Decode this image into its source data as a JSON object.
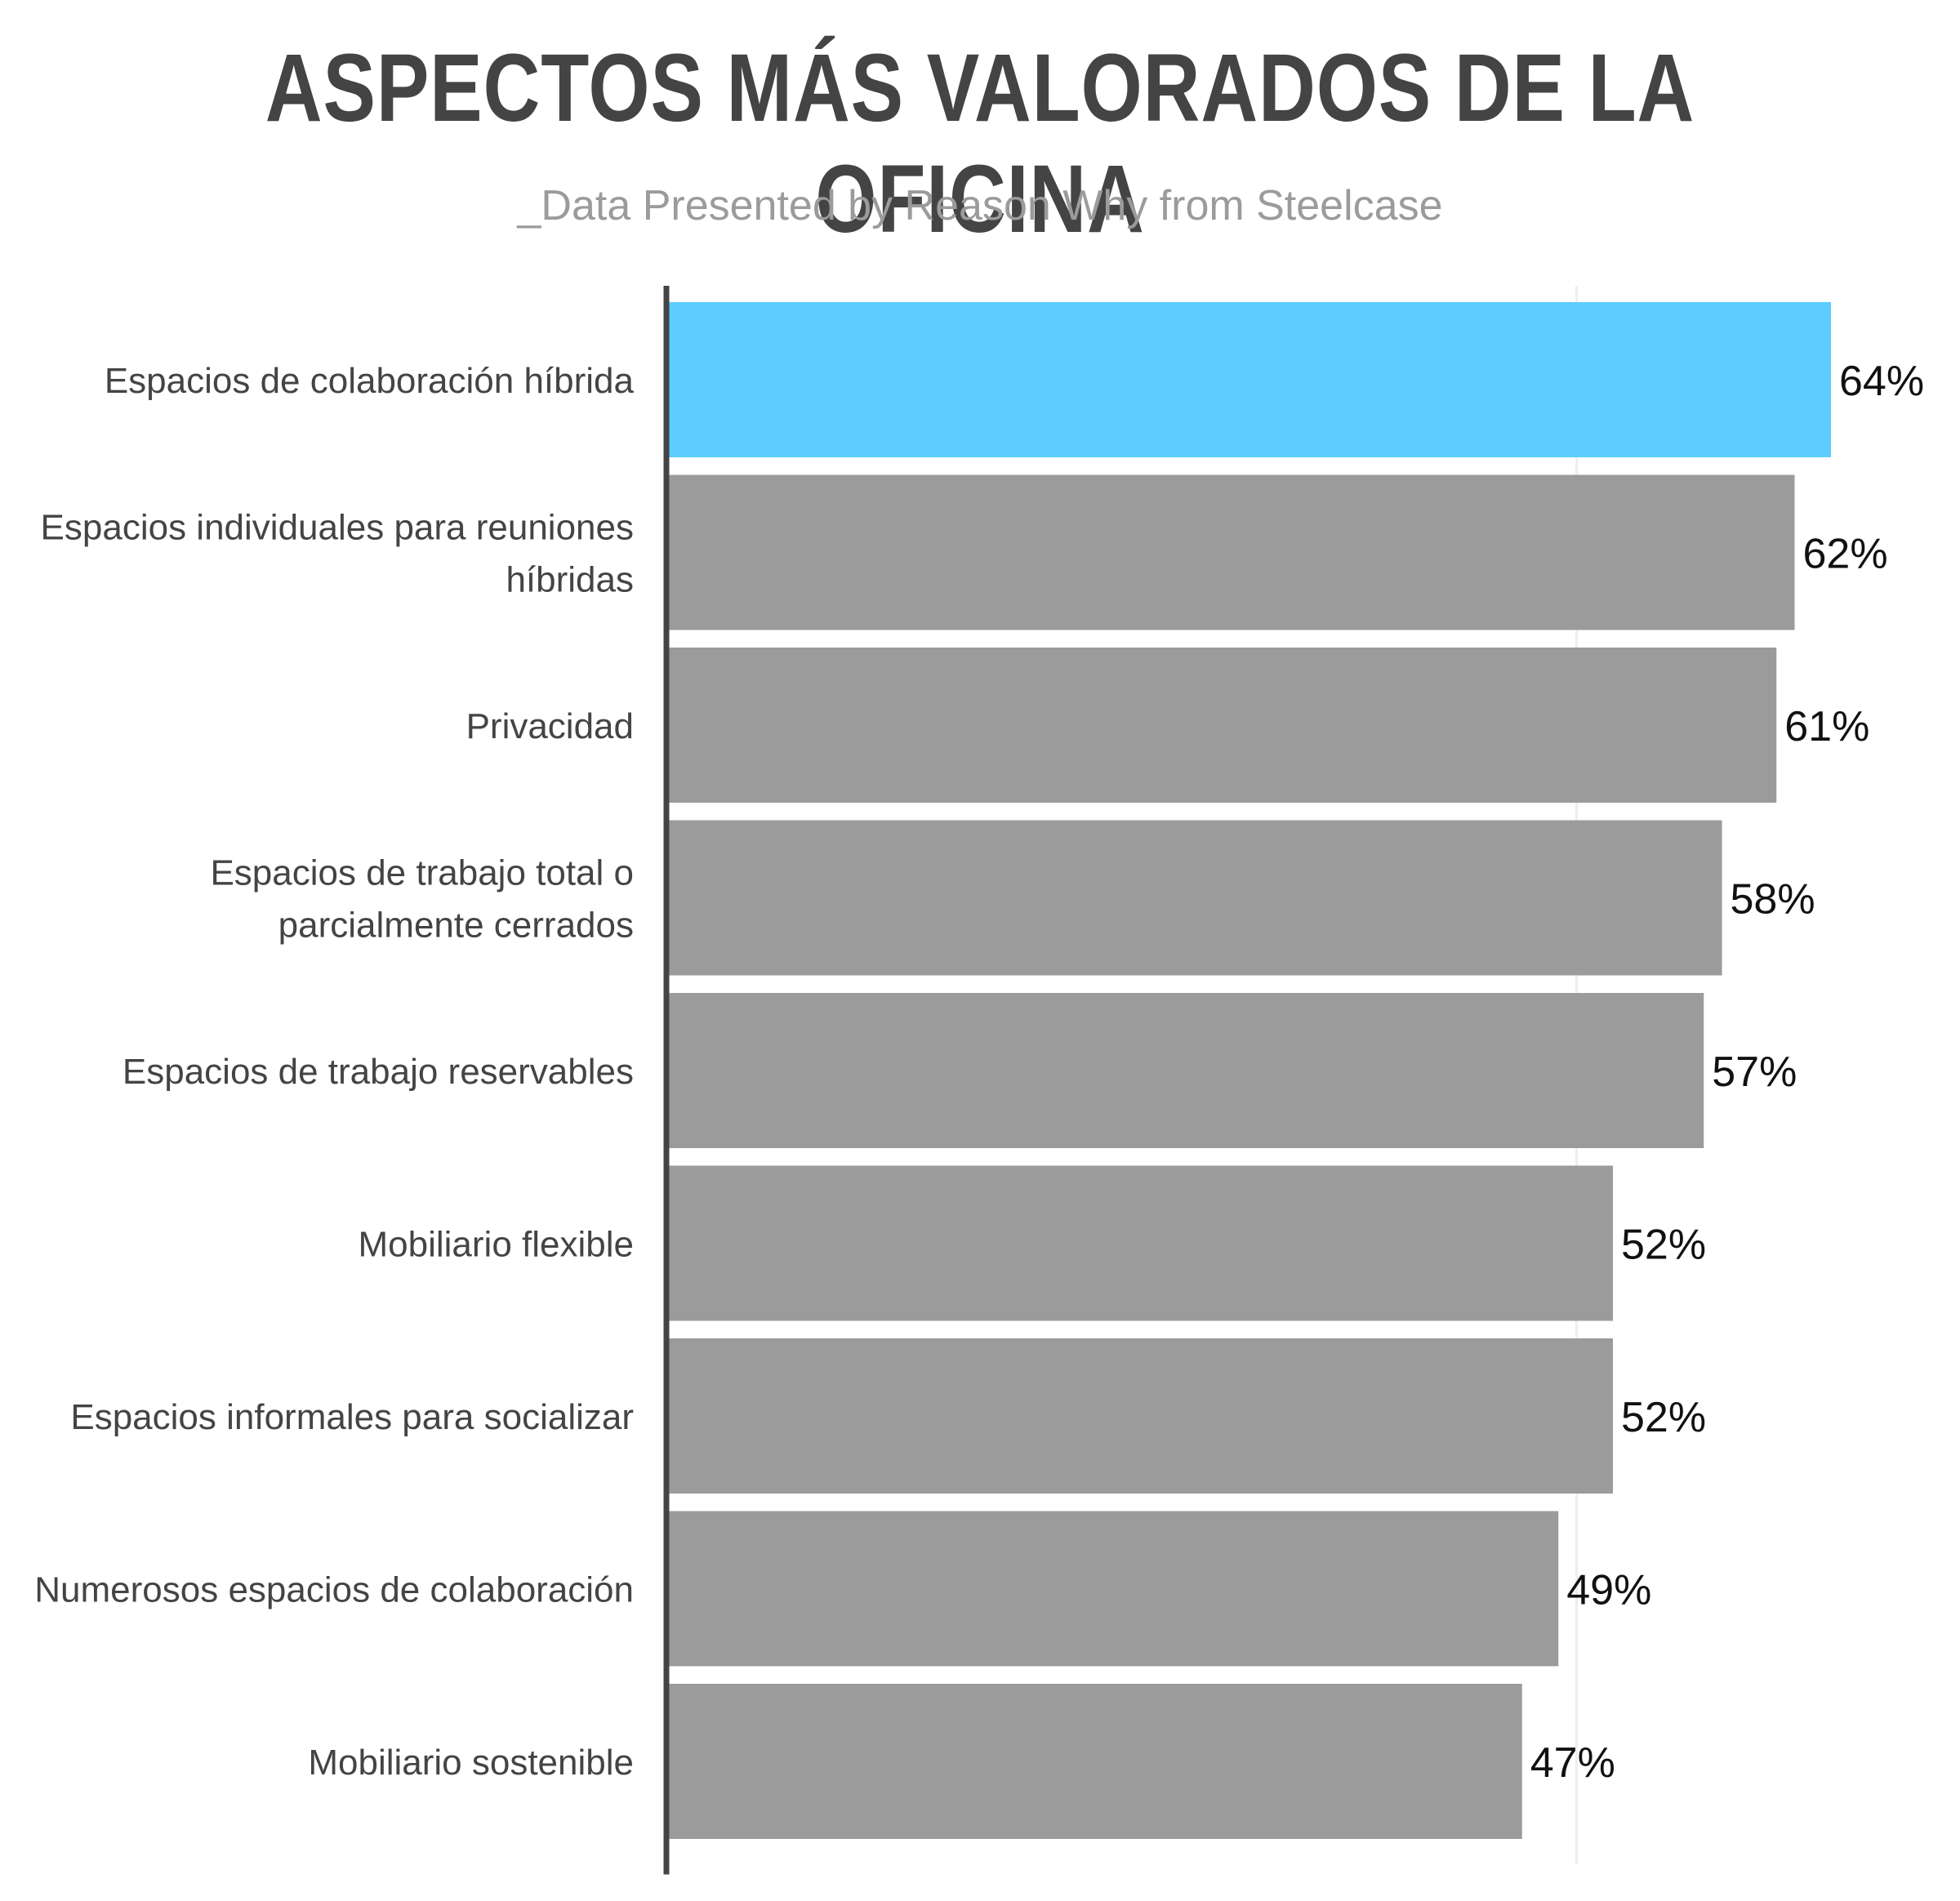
{
  "chart_data": {
    "type": "bar",
    "orientation": "horizontal",
    "title": "ASPECTOS MÁS VALORADOS DE LA OFICINA",
    "subtitle": "_Data Presented by Reason Why from Steelcase",
    "categories": [
      "Espacios de colaboración híbrida",
      "Espacios individuales para reuniones híbridas",
      "Privacidad",
      "Espacios de trabajo total o parcialmente cerrados",
      "Espacios de trabajo reservables",
      "Mobiliario flexible",
      "Espacios informales para socializar",
      "Numerosos espacios de colaboración",
      "Mobiliario sostenible"
    ],
    "category_lines": [
      [
        "Espacios de colaboración híbrida"
      ],
      [
        "Espacios individuales para reuniones",
        "híbridas"
      ],
      [
        "Privacidad"
      ],
      [
        "Espacios de trabajo total o",
        "parcialmente cerrados"
      ],
      [
        "Espacios de trabajo reservables"
      ],
      [
        "Mobiliario flexible"
      ],
      [
        "Espacios informales para socializar"
      ],
      [
        "Numerosos espacios de colaboración"
      ],
      [
        "Mobiliario sostenible"
      ]
    ],
    "values": [
      64,
      62,
      61,
      58,
      57,
      52,
      52,
      49,
      47
    ],
    "value_labels": [
      "64%",
      "62%",
      "61%",
      "58%",
      "57%",
      "52%",
      "52%",
      "49%",
      "47%"
    ],
    "highlight_index": 0,
    "xlim": [
      0,
      64
    ],
    "grid": true,
    "colors": {
      "highlight": "#5ccdfd",
      "bar": "#9b9b9b",
      "axis": "#444444",
      "grid": "#eeeeee",
      "label": "#444444",
      "value": "#111111"
    }
  }
}
